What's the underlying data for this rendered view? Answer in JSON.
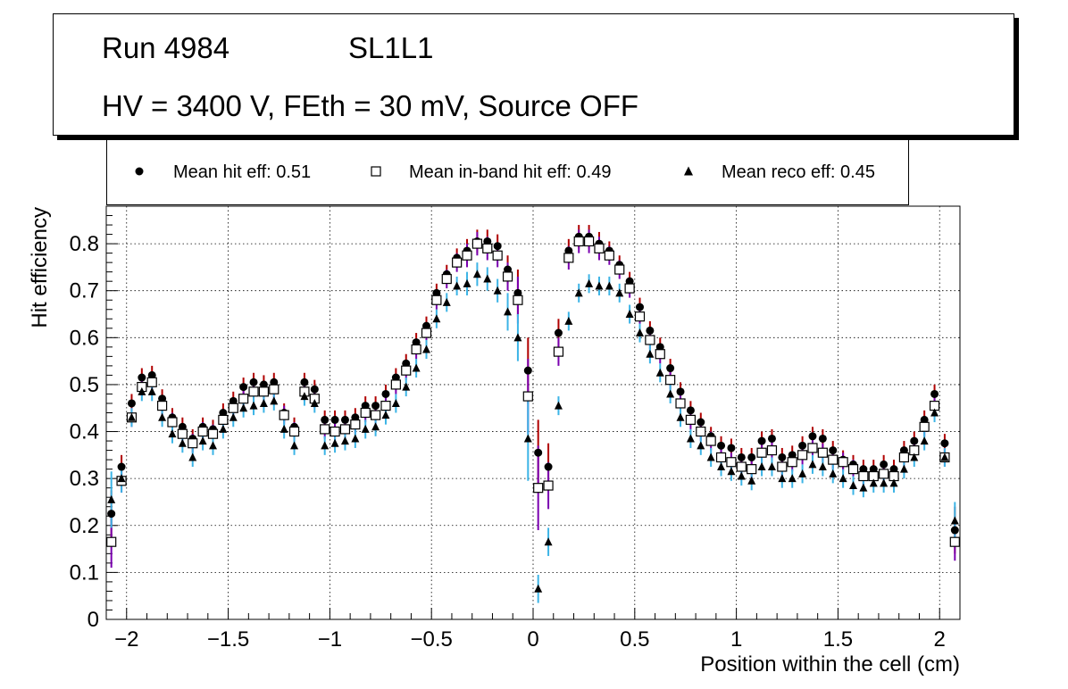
{
  "header": {
    "run": "Run 4984",
    "layer": "SL1L1",
    "conditions": "HV = 3400 V, FEth = 30 mV, Source OFF"
  },
  "colors": {
    "hit_marker": "#000000",
    "hit_error": "#b00000",
    "inband_error": "#7a00b0",
    "reco_error": "#3cb4e6",
    "grid": "#000000"
  },
  "chart_data": {
    "type": "scatter",
    "title": "",
    "xlabel": "Position within the cell (cm)",
    "ylabel": "Hit efficiency",
    "xlim": [
      -2.1,
      2.1
    ],
    "ylim": [
      0,
      0.88
    ],
    "xticks": [
      -2,
      -1.5,
      -1,
      -0.5,
      0,
      0.5,
      1,
      1.5,
      2
    ],
    "xtick_labels": [
      "−2",
      "−1.5",
      "−1",
      "−0.5",
      "0",
      "0.5",
      "1",
      "1.5",
      "2"
    ],
    "yticks": [
      0,
      0.1,
      0.2,
      0.3,
      0.4,
      0.5,
      0.6,
      0.7,
      0.8
    ],
    "ytick_labels": [
      "0",
      "0.1",
      "0.2",
      "0.3",
      "0.4",
      "0.5",
      "0.6",
      "0.7",
      "0.8"
    ],
    "grid": true,
    "x": [
      -2.075,
      -2.025,
      -1.975,
      -1.925,
      -1.875,
      -1.825,
      -1.775,
      -1.725,
      -1.675,
      -1.625,
      -1.575,
      -1.525,
      -1.475,
      -1.425,
      -1.375,
      -1.325,
      -1.275,
      -1.225,
      -1.175,
      -1.125,
      -1.075,
      -1.025,
      -0.975,
      -0.925,
      -0.875,
      -0.825,
      -0.775,
      -0.725,
      -0.675,
      -0.625,
      -0.575,
      -0.525,
      -0.475,
      -0.425,
      -0.375,
      -0.325,
      -0.275,
      -0.225,
      -0.175,
      -0.125,
      -0.075,
      -0.025,
      0.025,
      0.075,
      0.125,
      0.175,
      0.225,
      0.275,
      0.325,
      0.375,
      0.425,
      0.475,
      0.525,
      0.575,
      0.625,
      0.675,
      0.725,
      0.775,
      0.825,
      0.875,
      0.925,
      0.975,
      1.025,
      1.075,
      1.125,
      1.175,
      1.225,
      1.275,
      1.325,
      1.375,
      1.425,
      1.475,
      1.525,
      1.575,
      1.625,
      1.675,
      1.725,
      1.775,
      1.825,
      1.875,
      1.925,
      1.975,
      2.025,
      2.075
    ],
    "series": [
      {
        "name": "Mean hit  eff: 0.51",
        "marker": "circle",
        "values": [
          0.225,
          0.325,
          0.46,
          0.515,
          0.52,
          0.47,
          0.43,
          0.41,
          0.385,
          0.41,
          0.405,
          0.44,
          0.465,
          0.495,
          0.505,
          0.5,
          0.505,
          0.44,
          0.41,
          0.505,
          0.49,
          0.425,
          0.425,
          0.425,
          0.43,
          0.455,
          0.455,
          0.48,
          0.515,
          0.545,
          0.59,
          0.625,
          0.695,
          0.735,
          0.77,
          0.785,
          0.805,
          0.805,
          0.795,
          0.745,
          0.695,
          0.53,
          0.355,
          0.325,
          0.61,
          0.785,
          0.815,
          0.815,
          0.8,
          0.785,
          0.755,
          0.72,
          0.665,
          0.615,
          0.58,
          0.535,
          0.485,
          0.445,
          0.42,
          0.39,
          0.37,
          0.365,
          0.345,
          0.345,
          0.38,
          0.385,
          0.345,
          0.35,
          0.37,
          0.39,
          0.385,
          0.36,
          0.34,
          0.33,
          0.32,
          0.32,
          0.33,
          0.32,
          0.36,
          0.38,
          0.425,
          0.48,
          0.375,
          0.19
        ],
        "errors": [
          0.05,
          0.025,
          0.02,
          0.02,
          0.02,
          0.02,
          0.02,
          0.02,
          0.02,
          0.02,
          0.02,
          0.02,
          0.02,
          0.02,
          0.02,
          0.02,
          0.02,
          0.02,
          0.02,
          0.02,
          0.02,
          0.02,
          0.02,
          0.02,
          0.02,
          0.02,
          0.02,
          0.02,
          0.02,
          0.02,
          0.02,
          0.02,
          0.02,
          0.02,
          0.02,
          0.025,
          0.025,
          0.025,
          0.025,
          0.03,
          0.05,
          0.07,
          0.07,
          0.05,
          0.03,
          0.025,
          0.025,
          0.025,
          0.025,
          0.02,
          0.02,
          0.02,
          0.02,
          0.02,
          0.02,
          0.02,
          0.02,
          0.02,
          0.02,
          0.02,
          0.02,
          0.02,
          0.02,
          0.02,
          0.02,
          0.02,
          0.02,
          0.02,
          0.02,
          0.02,
          0.02,
          0.02,
          0.02,
          0.02,
          0.02,
          0.02,
          0.02,
          0.02,
          0.02,
          0.02,
          0.02,
          0.02,
          0.02,
          0.05
        ]
      },
      {
        "name": "Mean in-band hit eff: 0.49",
        "marker": "open-square",
        "values": [
          0.165,
          0.295,
          0.43,
          0.495,
          0.505,
          0.455,
          0.42,
          0.395,
          0.375,
          0.4,
          0.395,
          0.425,
          0.45,
          0.47,
          0.485,
          0.485,
          0.49,
          0.435,
          0.4,
          0.485,
          0.47,
          0.405,
          0.4,
          0.405,
          0.415,
          0.44,
          0.435,
          0.455,
          0.5,
          0.53,
          0.575,
          0.61,
          0.68,
          0.725,
          0.76,
          0.775,
          0.8,
          0.79,
          0.775,
          0.73,
          0.68,
          0.475,
          0.28,
          0.285,
          0.57,
          0.77,
          0.805,
          0.805,
          0.79,
          0.775,
          0.745,
          0.705,
          0.645,
          0.595,
          0.565,
          0.51,
          0.46,
          0.425,
          0.4,
          0.38,
          0.345,
          0.335,
          0.325,
          0.32,
          0.355,
          0.36,
          0.325,
          0.335,
          0.35,
          0.365,
          0.355,
          0.34,
          0.335,
          0.32,
          0.305,
          0.305,
          0.31,
          0.305,
          0.345,
          0.36,
          0.41,
          0.455,
          0.345,
          0.165
        ],
        "errors": [
          0.055,
          0.025,
          0.02,
          0.02,
          0.02,
          0.02,
          0.02,
          0.02,
          0.02,
          0.02,
          0.02,
          0.02,
          0.02,
          0.02,
          0.02,
          0.02,
          0.02,
          0.02,
          0.02,
          0.02,
          0.02,
          0.02,
          0.02,
          0.02,
          0.02,
          0.02,
          0.02,
          0.02,
          0.02,
          0.02,
          0.02,
          0.02,
          0.02,
          0.02,
          0.02,
          0.025,
          0.025,
          0.025,
          0.025,
          0.03,
          0.05,
          0.08,
          0.09,
          0.05,
          0.03,
          0.025,
          0.025,
          0.025,
          0.025,
          0.02,
          0.02,
          0.02,
          0.02,
          0.02,
          0.02,
          0.02,
          0.02,
          0.02,
          0.02,
          0.02,
          0.02,
          0.02,
          0.02,
          0.02,
          0.02,
          0.02,
          0.02,
          0.02,
          0.02,
          0.02,
          0.02,
          0.02,
          0.02,
          0.02,
          0.02,
          0.02,
          0.02,
          0.02,
          0.02,
          0.02,
          0.02,
          0.02,
          0.02,
          0.04
        ]
      },
      {
        "name": "Mean reco eff: 0.45",
        "marker": "triangle",
        "values": [
          0.255,
          0.3,
          0.43,
          0.485,
          0.485,
          0.43,
          0.395,
          0.375,
          0.345,
          0.38,
          0.37,
          0.405,
          0.43,
          0.45,
          0.455,
          0.46,
          0.465,
          0.405,
          0.37,
          0.475,
          0.46,
          0.37,
          0.375,
          0.38,
          0.385,
          0.405,
          0.41,
          0.435,
          0.46,
          0.495,
          0.535,
          0.575,
          0.64,
          0.675,
          0.71,
          0.715,
          0.735,
          0.725,
          0.7,
          0.655,
          0.6,
          0.385,
          0.065,
          0.165,
          0.455,
          0.635,
          0.695,
          0.715,
          0.71,
          0.71,
          0.695,
          0.65,
          0.61,
          0.565,
          0.525,
          0.48,
          0.43,
          0.385,
          0.37,
          0.345,
          0.325,
          0.315,
          0.305,
          0.295,
          0.325,
          0.325,
          0.3,
          0.3,
          0.31,
          0.33,
          0.325,
          0.31,
          0.3,
          0.285,
          0.28,
          0.29,
          0.29,
          0.29,
          0.32,
          0.345,
          0.38,
          0.44,
          0.345,
          0.21
        ],
        "errors": [
          0.06,
          0.03,
          0.02,
          0.02,
          0.02,
          0.02,
          0.02,
          0.02,
          0.02,
          0.02,
          0.02,
          0.02,
          0.02,
          0.02,
          0.02,
          0.02,
          0.02,
          0.02,
          0.02,
          0.02,
          0.02,
          0.02,
          0.02,
          0.02,
          0.02,
          0.02,
          0.02,
          0.02,
          0.02,
          0.02,
          0.02,
          0.02,
          0.02,
          0.02,
          0.02,
          0.025,
          0.025,
          0.025,
          0.025,
          0.04,
          0.05,
          0.09,
          0.03,
          0.03,
          0.02,
          0.02,
          0.02,
          0.02,
          0.02,
          0.02,
          0.02,
          0.02,
          0.02,
          0.02,
          0.02,
          0.02,
          0.02,
          0.02,
          0.02,
          0.02,
          0.02,
          0.02,
          0.02,
          0.02,
          0.02,
          0.02,
          0.02,
          0.02,
          0.02,
          0.02,
          0.02,
          0.02,
          0.02,
          0.02,
          0.02,
          0.02,
          0.02,
          0.02,
          0.02,
          0.02,
          0.02,
          0.02,
          0.02,
          0.04
        ]
      }
    ]
  }
}
